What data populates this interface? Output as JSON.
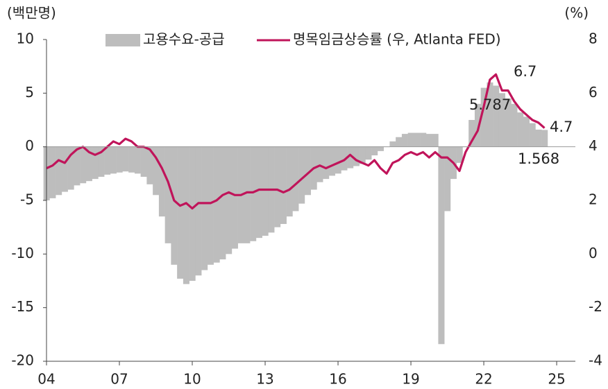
{
  "chart_data": {
    "type": "bar+line",
    "y_label": "(백만명)",
    "y2_label": "(%)",
    "x": [
      2004,
      2004.25,
      2004.5,
      2004.75,
      2005,
      2005.25,
      2005.5,
      2005.75,
      2006,
      2006.25,
      2006.5,
      2006.75,
      2007,
      2007.25,
      2007.5,
      2007.75,
      2008,
      2008.25,
      2008.5,
      2008.75,
      2009,
      2009.25,
      2009.5,
      2009.75,
      2010,
      2010.25,
      2010.5,
      2010.75,
      2011,
      2011.25,
      2011.5,
      2011.75,
      2012,
      2012.25,
      2012.5,
      2012.75,
      2013,
      2013.25,
      2013.5,
      2013.75,
      2014,
      2014.25,
      2014.5,
      2014.75,
      2015,
      2015.25,
      2015.5,
      2015.75,
      2016,
      2016.25,
      2016.5,
      2016.75,
      2017,
      2017.25,
      2017.5,
      2017.75,
      2018,
      2018.25,
      2018.5,
      2018.75,
      2019,
      2019.25,
      2019.5,
      2019.75,
      2020,
      2020.25,
      2020.5,
      2020.75,
      2021,
      2021.25,
      2021.5,
      2021.75,
      2022,
      2022.25,
      2022.5,
      2022.75,
      2023,
      2023.25,
      2023.5,
      2023.75,
      2024,
      2024.25,
      2024.5
    ],
    "series": [
      {
        "name": "고용수요-공급",
        "color": "#bdbdbd",
        "kind": "bar",
        "values": [
          -5,
          -4.8,
          -4.5,
          -4.2,
          -4,
          -3.6,
          -3.4,
          -3.2,
          -3,
          -2.8,
          -2.6,
          -2.5,
          -2.4,
          -2.3,
          -2.4,
          -2.5,
          -2.8,
          -3.5,
          -4.5,
          -6.5,
          -9,
          -11,
          -12.3,
          -12.8,
          -12.5,
          -12,
          -11.5,
          -11,
          -10.8,
          -10.5,
          -10,
          -9.5,
          -9,
          -9,
          -8.8,
          -8.5,
          -8.3,
          -8,
          -7.5,
          -7.2,
          -6.5,
          -6,
          -5.3,
          -4.5,
          -4,
          -3.3,
          -3,
          -2.7,
          -2.5,
          -2.2,
          -2,
          -1.8,
          -1.6,
          -1.2,
          -0.8,
          -0.4,
          0,
          0.5,
          0.9,
          1.2,
          1.3,
          1.3,
          1.3,
          1.2,
          1.2,
          -18.4,
          -6,
          -3,
          -1.5,
          0,
          2.5,
          4,
          5.5,
          6,
          5.7,
          5,
          4.5,
          4,
          3.2,
          2.8,
          2.2,
          1.6,
          1.568
        ]
      },
      {
        "name": "명목임금상승률 (우, Atlanta FED)",
        "color": "#c0145a",
        "kind": "line",
        "axis": "y2",
        "values": [
          3.2,
          3.3,
          3.5,
          3.4,
          3.7,
          3.9,
          4.0,
          3.8,
          3.7,
          3.8,
          4.0,
          4.2,
          4.1,
          4.3,
          4.2,
          4.0,
          4.0,
          3.9,
          3.6,
          3.2,
          2.7,
          2.0,
          1.8,
          1.9,
          1.7,
          1.9,
          1.9,
          1.9,
          2.0,
          2.2,
          2.3,
          2.2,
          2.2,
          2.3,
          2.3,
          2.4,
          2.4,
          2.4,
          2.4,
          2.3,
          2.4,
          2.6,
          2.8,
          3.0,
          3.2,
          3.3,
          3.2,
          3.3,
          3.4,
          3.5,
          3.7,
          3.5,
          3.4,
          3.3,
          3.5,
          3.2,
          3.0,
          3.4,
          3.5,
          3.7,
          3.8,
          3.7,
          3.8,
          3.6,
          3.8,
          3.6,
          3.6,
          3.4,
          3.1,
          3.8,
          4.2,
          4.6,
          5.5,
          6.5,
          6.7,
          6.1,
          6.1,
          5.7,
          5.4,
          5.2,
          5.0,
          4.9,
          4.7
        ]
      }
    ],
    "xlim": [
      2004,
      2025.77
    ],
    "xticks": [
      {
        "value": 2004,
        "label": "04"
      },
      {
        "value": 2007,
        "label": "07"
      },
      {
        "value": 2010,
        "label": "10"
      },
      {
        "value": 2013,
        "label": "13"
      },
      {
        "value": 2016,
        "label": "16"
      },
      {
        "value": 2019,
        "label": "19"
      },
      {
        "value": 2022,
        "label": "22"
      },
      {
        "value": 2025,
        "label": "25"
      }
    ],
    "ylim": [
      -20,
      10
    ],
    "yticks": [
      -20,
      -15,
      -10,
      -5,
      0,
      5,
      10
    ],
    "y2lim": [
      -4,
      8
    ],
    "y2ticks": [
      -4,
      -2,
      0,
      2,
      4,
      6,
      8
    ],
    "annotations": [
      "6.7",
      "5.787",
      "4.7",
      "1.568"
    ]
  }
}
